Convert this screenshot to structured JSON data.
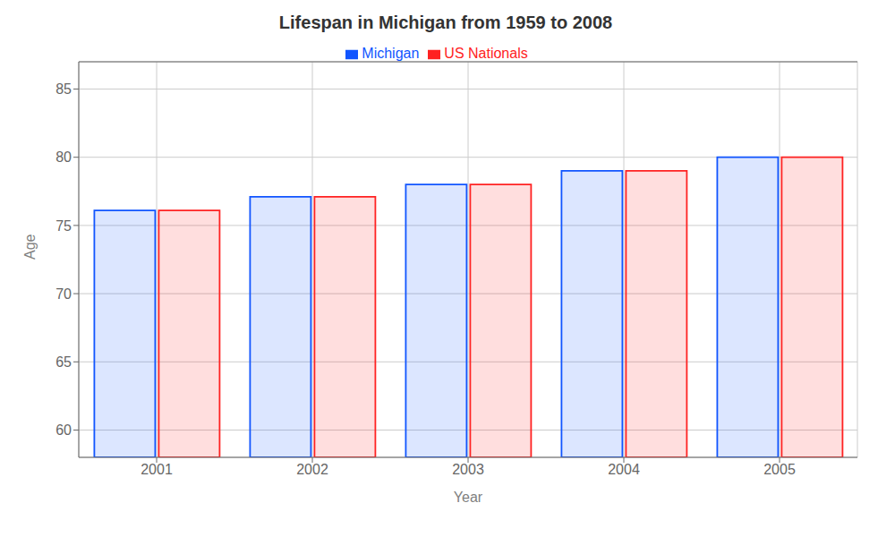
{
  "chart_data": {
    "type": "bar",
    "title": "Lifespan in Michigan from 1959 to 2008",
    "x_label": "Year",
    "y_label": "Age",
    "categories": [
      "2001",
      "2002",
      "2003",
      "2004",
      "2005"
    ],
    "series": [
      {
        "name": "Michigan",
        "color": "#1155ff",
        "values": [
          76.1,
          77.1,
          78.0,
          79.0,
          80.0
        ]
      },
      {
        "name": "US Nationals",
        "color": "#ff2222",
        "values": [
          76.1,
          77.1,
          78.0,
          79.0,
          80.0
        ]
      }
    ],
    "ylim": [
      58,
      87
    ],
    "yticks": [
      60,
      65,
      70,
      75,
      80,
      85
    ],
    "grid": true,
    "legend": "top"
  }
}
